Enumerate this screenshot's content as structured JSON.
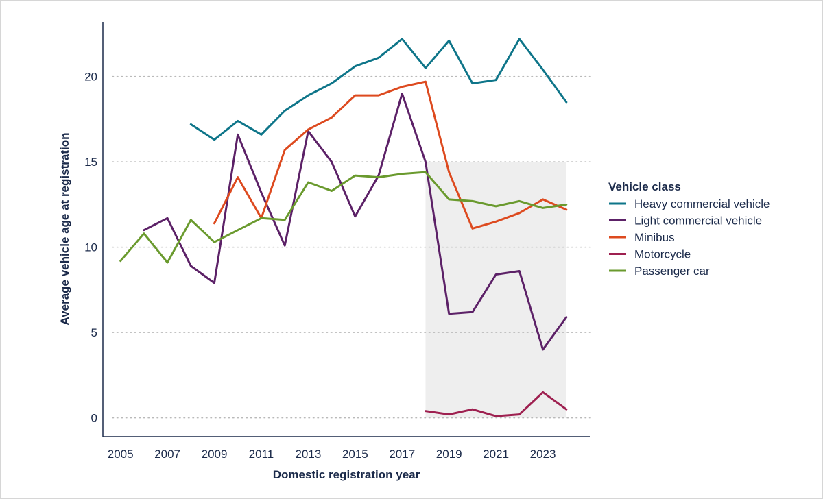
{
  "chart_data": {
    "type": "line",
    "xlabel": "Domestic registration year",
    "ylabel": "Average vehicle age at registration",
    "x_ticks": [
      "2005",
      "2007",
      "2009",
      "2011",
      "2013",
      "2015",
      "2017",
      "2019",
      "2021",
      "2023"
    ],
    "y_ticks": [
      "0",
      "5",
      "10",
      "15",
      "20"
    ],
    "xlim": [
      2004.25,
      2025
    ],
    "ylim": [
      -1.1,
      23.2
    ],
    "grid": "horizontal dotted",
    "shaded_region": {
      "x": [
        2018,
        2024
      ],
      "y": [
        0,
        15
      ],
      "color": "#eeeeee"
    },
    "legend": {
      "title": "Vehicle class",
      "placement": "right"
    },
    "series": [
      {
        "name": "Heavy commercial vehicle",
        "color": "#0e7589",
        "x": [
          2008,
          2009,
          2010,
          2011,
          2012,
          2013,
          2014,
          2015,
          2016,
          2017,
          2018,
          2019,
          2020,
          2021,
          2022,
          2023,
          2024
        ],
        "values": [
          17.2,
          16.3,
          17.4,
          16.6,
          18.0,
          18.9,
          19.6,
          20.6,
          21.1,
          22.2,
          20.5,
          22.1,
          19.6,
          19.8,
          22.2,
          20.4,
          18.5
        ]
      },
      {
        "name": "Light commercial vehicle",
        "color": "#5c2167",
        "x": [
          2006,
          2007,
          2008,
          2009,
          2010,
          2011,
          2012,
          2013,
          2014,
          2015,
          2016,
          2017,
          2018,
          2019,
          2020,
          2021,
          2022,
          2023,
          2024
        ],
        "values": [
          11.0,
          11.7,
          8.9,
          7.9,
          16.6,
          13.2,
          10.1,
          16.8,
          15.0,
          11.8,
          14.2,
          19.0,
          15.0,
          6.1,
          6.2,
          8.4,
          8.6,
          4.0,
          5.9
        ]
      },
      {
        "name": "Minibus",
        "color": "#dd4a1f",
        "x": [
          2009,
          2010,
          2011,
          2012,
          2013,
          2014,
          2015,
          2016,
          2017,
          2018,
          2019,
          2020,
          2021,
          2022,
          2023,
          2024
        ],
        "values": [
          11.4,
          14.1,
          11.7,
          15.7,
          16.9,
          17.6,
          18.9,
          18.9,
          19.4,
          19.7,
          14.4,
          11.1,
          11.5,
          12.0,
          12.8,
          12.2
        ]
      },
      {
        "name": "Motorcycle",
        "color": "#9e2050",
        "x": [
          2018,
          2019,
          2020,
          2021,
          2022,
          2023,
          2024
        ],
        "values": [
          0.4,
          0.2,
          0.5,
          0.1,
          0.2,
          1.5,
          0.5
        ]
      },
      {
        "name": "Passenger car",
        "color": "#6a9a2e",
        "x": [
          2005,
          2006,
          2007,
          2008,
          2009,
          2010,
          2011,
          2012,
          2013,
          2014,
          2015,
          2016,
          2017,
          2018,
          2019,
          2020,
          2021,
          2022,
          2023,
          2024
        ],
        "values": [
          9.2,
          10.8,
          9.1,
          11.6,
          10.3,
          11.0,
          11.7,
          11.6,
          13.8,
          13.3,
          14.2,
          14.1,
          14.3,
          14.4,
          12.8,
          12.7,
          12.4,
          12.7,
          12.3,
          12.5
        ]
      }
    ]
  }
}
